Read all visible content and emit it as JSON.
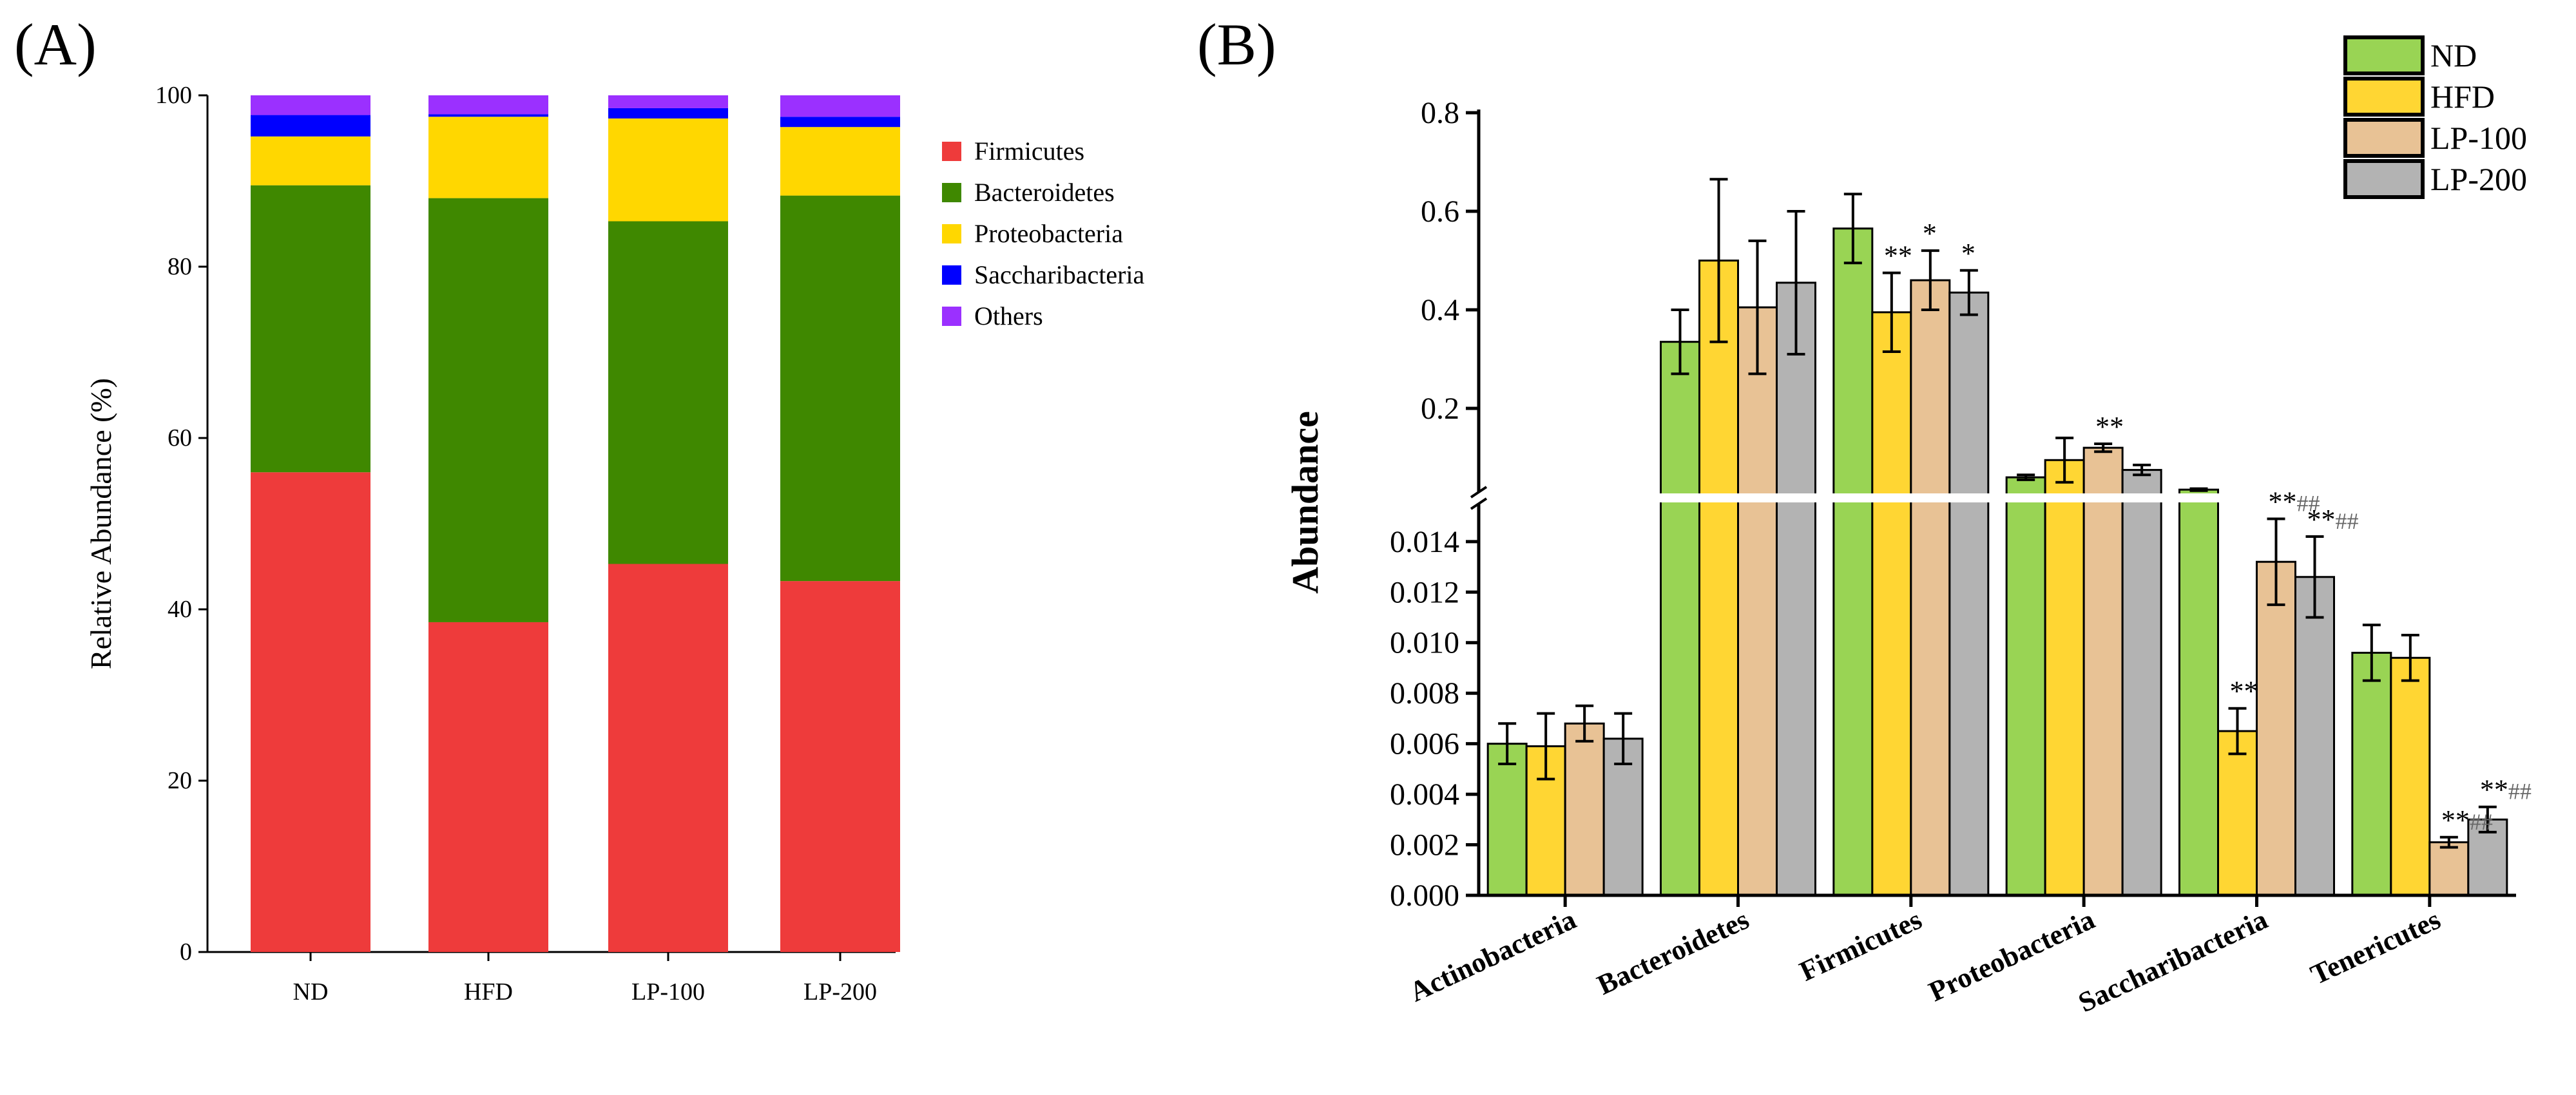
{
  "chart_data": [
    {
      "type": "bar",
      "stacked": true,
      "panel_label": "(A)",
      "title": "",
      "xlabel": "",
      "ylabel": "Relative Abundance (%)",
      "ylim": [
        0,
        100
      ],
      "yticks": [
        0,
        20,
        40,
        60,
        80,
        100
      ],
      "categories": [
        "ND",
        "HFD",
        "LP-100",
        "LP-200"
      ],
      "legend_position": "right",
      "series": [
        {
          "name": "Firmicutes",
          "color": "#ee3b3b",
          "values": [
            56.0,
            38.5,
            45.3,
            43.3
          ]
        },
        {
          "name": "Bacteroidetes",
          "color": "#3f8800",
          "values": [
            33.5,
            49.5,
            40.0,
            45.0
          ]
        },
        {
          "name": "Proteobacteria",
          "color": "#ffd700",
          "values": [
            5.7,
            9.5,
            12.0,
            8.0
          ]
        },
        {
          "name": "Saccharibacteria",
          "color": "#0000ff",
          "values": [
            2.5,
            0.3,
            1.2,
            1.2
          ]
        },
        {
          "name": "Others",
          "color": "#9b30ff",
          "values": [
            2.3,
            2.2,
            1.5,
            2.5
          ]
        }
      ]
    },
    {
      "type": "bar",
      "panel_label": "(B)",
      "title": "",
      "xlabel": "",
      "ylabel": "Abundance",
      "axis_break": true,
      "ylim_upper": [
        0.03,
        0.8
      ],
      "yticks_upper": [
        "0.2",
        "0.4",
        "0.6",
        "0.8"
      ],
      "ylim_lower": [
        0,
        0.0155
      ],
      "yticks_lower": [
        "0.000",
        "0.002",
        "0.004",
        "0.006",
        "0.008",
        "0.010",
        "0.012",
        "0.014"
      ],
      "categories": [
        "Actinobacteria",
        "Bacteroidetes",
        "Firmicutes",
        "Proteobacteria",
        "Saccharibacteria",
        "Tenericutes"
      ],
      "legend_position": "top-right",
      "series": [
        {
          "name": "ND",
          "color": "#99d454",
          "values": [
            0.006,
            0.335,
            0.565,
            0.06,
            0.035,
            0.0096
          ],
          "errors": [
            0.0008,
            0.065,
            0.07,
            0.005,
            0.002,
            0.0011
          ]
        },
        {
          "name": "HFD",
          "color": "#ffd633",
          "values": [
            0.0059,
            0.5,
            0.395,
            0.095,
            0.0065,
            0.0094
          ],
          "errors": [
            0.0013,
            0.165,
            0.08,
            0.045,
            0.0009,
            0.0009
          ]
        },
        {
          "name": "LP-100",
          "color": "#e8c295",
          "values": [
            0.0068,
            0.405,
            0.46,
            0.12,
            0.0132,
            0.0021
          ],
          "errors": [
            0.0007,
            0.135,
            0.06,
            0.008,
            0.0017,
            0.0002
          ]
        },
        {
          "name": "LP-200",
          "color": "#b3b3b3",
          "values": [
            0.0062,
            0.455,
            0.435,
            0.075,
            0.0126,
            0.003
          ],
          "errors": [
            0.001,
            0.145,
            0.045,
            0.01,
            0.0016,
            0.0005
          ]
        }
      ],
      "annotations": [
        {
          "category": "Firmicutes",
          "series": "HFD",
          "text": "**"
        },
        {
          "category": "Firmicutes",
          "series": "LP-100",
          "text": "*"
        },
        {
          "category": "Firmicutes",
          "series": "LP-200",
          "text": "*"
        },
        {
          "category": "Proteobacteria",
          "series": "LP-100",
          "text": "**"
        },
        {
          "category": "Saccharibacteria",
          "series": "HFD",
          "text": "**"
        },
        {
          "category": "Saccharibacteria",
          "series": "LP-100",
          "text": "**##"
        },
        {
          "category": "Saccharibacteria",
          "series": "LP-200",
          "text": "**##"
        },
        {
          "category": "Tenericutes",
          "series": "LP-100",
          "text": "**##"
        },
        {
          "category": "Tenericutes",
          "series": "LP-200",
          "text": "**##"
        }
      ]
    }
  ]
}
